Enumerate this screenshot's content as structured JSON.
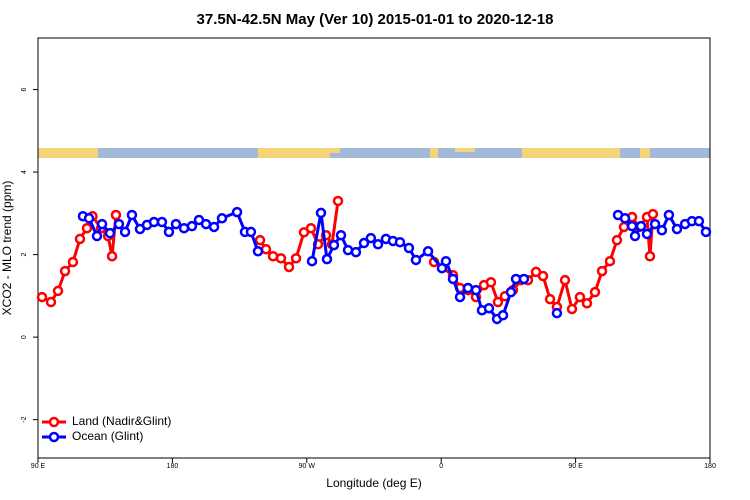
{
  "chart_data": {
    "type": "line",
    "title": "37.5N-42.5N May (Ver 10)   2015-01-01 to 2020-12-18",
    "x_label": "Longitude (deg E)",
    "y_label": "XCO2 - MLO trend (ppm)",
    "xlim": [
      90,
      540
    ],
    "ylim": [
      -2.93,
      7.25
    ],
    "xticks": [
      {
        "value": 90,
        "label": "90 E"
      },
      180,
      {
        "value": 270,
        "label": "90 W"
      },
      {
        "value": 360,
        "label": "0"
      },
      {
        "value": 450,
        "label": "90 E"
      },
      {
        "value": 540,
        "label": "180"
      }
    ],
    "yticks": [
      -2,
      0,
      2,
      4,
      6
    ],
    "legend": "bottom-left",
    "series": [
      {
        "name": "Land (Nadir&Glint)",
        "color": "#ff0000",
        "x": [
          92.7,
          98.7,
          103.4,
          108.1,
          113.4,
          118.1,
          122.8,
          126.5,
          132.2,
          136.9,
          139.6,
          142.2,
          null,
          238.7,
          242.7,
          247.4,
          252.7,
          258.1,
          262.8,
          268.1,
          272.8,
          277.5,
          282.9,
          286.9,
          290.9,
          null,
          355.2,
          367.9,
          372.6,
          377.9,
          383.3,
          388.7,
          393.3,
          398.0,
          402.7,
          408.1,
          413.4,
          418.1,
          423.5,
          428.2,
          432.9,
          437.5,
          442.9,
          447.6,
          452.9,
          457.6,
          463.0,
          467.7,
          473.0,
          477.7,
          482.4,
          487.8,
          492.5,
          497.8,
          499.8,
          501.8
        ],
        "values": [
          0.97,
          0.85,
          1.12,
          1.6,
          1.82,
          2.38,
          2.64,
          2.93,
          2.64,
          2.45,
          1.96,
          2.96,
          null,
          2.35,
          2.13,
          1.96,
          1.91,
          1.7,
          1.91,
          2.54,
          2.64,
          2.25,
          2.47,
          2.25,
          3.3,
          null,
          1.82,
          1.5,
          1.19,
          1.14,
          0.97,
          1.26,
          1.33,
          0.85,
          0.99,
          1.14,
          1.38,
          1.38,
          1.58,
          1.48,
          0.92,
          0.73,
          1.38,
          0.68,
          0.97,
          0.82,
          1.09,
          1.6,
          1.84,
          2.35,
          2.67,
          2.91,
          2.67,
          2.91,
          1.96,
          2.98
        ]
      },
      {
        "name": "Ocean (Glint)",
        "color": "#0000ff",
        "x": [
          120.1,
          124.2,
          129.5,
          132.9,
          138.2,
          144.2,
          148.3,
          152.9,
          158.3,
          163.0,
          167.7,
          173.0,
          177.7,
          182.4,
          187.8,
          193.1,
          197.8,
          202.5,
          207.9,
          213.2,
          223.3,
          228.6,
          232.6,
          237.3,
          null,
          273.5,
          279.5,
          283.5,
          288.2,
          292.9,
          297.6,
          302.9,
          308.3,
          312.9,
          317.7,
          323.0,
          327.7,
          332.4,
          338.4,
          343.1,
          351.2,
          360.5,
          363.2,
          367.9,
          372.6,
          377.9,
          383.3,
          387.3,
          392.0,
          397.4,
          401.4,
          406.7,
          410.1,
          415.4,
          null,
          437.5,
          null,
          478.4,
          483.1,
          487.8,
          489.8,
          493.8,
          497.8,
          503.2,
          507.8,
          512.5,
          517.9,
          523.3,
          527.9,
          532.6,
          537.3
        ],
        "values": [
          2.93,
          2.88,
          2.45,
          2.74,
          2.52,
          2.74,
          2.55,
          2.96,
          2.62,
          2.72,
          2.79,
          2.79,
          2.55,
          2.74,
          2.64,
          2.69,
          2.84,
          2.74,
          2.67,
          2.88,
          3.03,
          2.55,
          2.55,
          2.08,
          null,
          1.84,
          3.01,
          1.89,
          2.23,
          2.47,
          2.11,
          2.06,
          2.28,
          2.4,
          2.25,
          2.38,
          2.33,
          2.3,
          2.16,
          1.87,
          2.08,
          1.67,
          1.84,
          1.41,
          0.97,
          1.19,
          1.14,
          0.65,
          0.7,
          0.44,
          0.53,
          1.09,
          1.41,
          1.41,
          null,
          0.58,
          null,
          2.96,
          2.88,
          2.69,
          2.45,
          2.69,
          2.5,
          2.74,
          2.59,
          2.96,
          2.62,
          2.74,
          2.81,
          2.81,
          2.55
        ]
      }
    ]
  }
}
